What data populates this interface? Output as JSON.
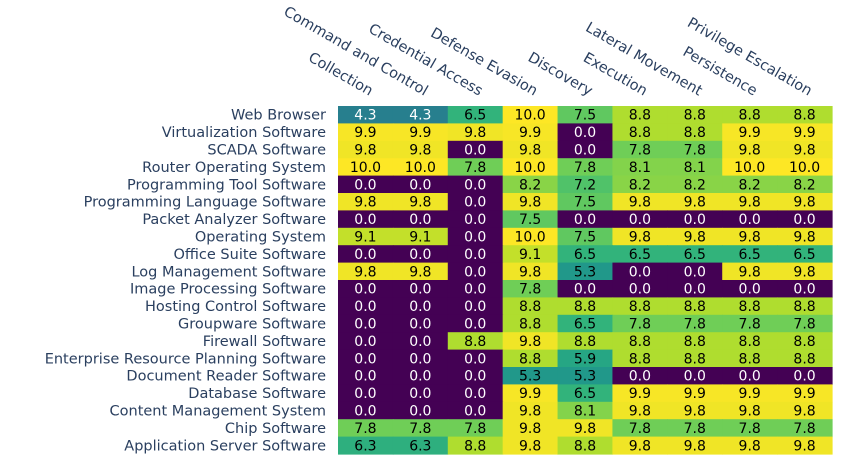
{
  "chart_data": {
    "type": "heatmap",
    "columns": [
      "Collection",
      "Command and Control",
      "Credential Access",
      "Defense Evasion",
      "Discovery",
      "Execution",
      "Lateral Movement",
      "Persistence",
      "Privilege Escalation"
    ],
    "rows": [
      "Web Browser",
      "Virtualization Software",
      "SCADA Software",
      "Router Operating System",
      "Programming Tool Software",
      "Programming Language Software",
      "Packet Analyzer Software",
      "Operating System",
      "Office Suite Software",
      "Log Management Software",
      "Image Processing Software",
      "Hosting Control Software",
      "Groupware Software",
      "Firewall Software",
      "Enterprise Resource Planning Software",
      "Document Reader Software",
      "Database Software",
      "Content Management System",
      "Chip Software",
      "Application Server Software"
    ],
    "values": [
      [
        "4.3",
        "4.3",
        "6.5",
        "10.0",
        "7.5",
        "8.8",
        "8.8",
        "8.8",
        "8.8"
      ],
      [
        "9.9",
        "9.9",
        "9.8",
        "9.9",
        "0.0",
        "8.8",
        "8.8",
        "9.9",
        "9.9"
      ],
      [
        "9.8",
        "9.8",
        "0.0",
        "9.8",
        "0.0",
        "7.8",
        "7.8",
        "9.8",
        "9.8"
      ],
      [
        "10.0",
        "10.0",
        "7.8",
        "10.0",
        "7.8",
        "8.1",
        "8.1",
        "10.0",
        "10.0"
      ],
      [
        "0.0",
        "0.0",
        "0.0",
        "8.2",
        "7.2",
        "8.2",
        "8.2",
        "8.2",
        "8.2"
      ],
      [
        "9.8",
        "9.8",
        "0.0",
        "9.8",
        "7.5",
        "9.8",
        "9.8",
        "9.8",
        "9.8"
      ],
      [
        "0.0",
        "0.0",
        "0.0",
        "7.5",
        "0.0",
        "0.0",
        "0.0",
        "0.0",
        "0.0"
      ],
      [
        "9.1",
        "9.1",
        "0.0",
        "10.0",
        "7.5",
        "9.8",
        "9.8",
        "9.8",
        "9.8"
      ],
      [
        "0.0",
        "0.0",
        "0.0",
        "9.1",
        "6.5",
        "6.5",
        "6.5",
        "6.5",
        "6.5"
      ],
      [
        "9.8",
        "9.8",
        "0.0",
        "9.8",
        "5.3",
        "0.0",
        "0.0",
        "9.8",
        "9.8"
      ],
      [
        "0.0",
        "0.0",
        "0.0",
        "7.8",
        "0.0",
        "0.0",
        "0.0",
        "0.0",
        "0.0"
      ],
      [
        "0.0",
        "0.0",
        "0.0",
        "8.8",
        "8.8",
        "8.8",
        "8.8",
        "8.8",
        "8.8"
      ],
      [
        "0.0",
        "0.0",
        "0.0",
        "8.8",
        "6.5",
        "7.8",
        "7.8",
        "7.8",
        "7.8"
      ],
      [
        "0.0",
        "0.0",
        "8.8",
        "9.8",
        "8.8",
        "8.8",
        "8.8",
        "8.8",
        "8.8"
      ],
      [
        "0.0",
        "0.0",
        "0.0",
        "8.8",
        "5.9",
        "8.8",
        "8.8",
        "8.8",
        "8.8"
      ],
      [
        "0.0",
        "0.0",
        "0.0",
        "5.3",
        "5.3",
        "0.0",
        "0.0",
        "0.0",
        "0.0"
      ],
      [
        "0.0",
        "0.0",
        "0.0",
        "9.9",
        "6.5",
        "9.9",
        "9.9",
        "9.9",
        "9.9"
      ],
      [
        "0.0",
        "0.0",
        "0.0",
        "9.8",
        "8.1",
        "9.8",
        "9.8",
        "9.8",
        "9.8"
      ],
      [
        "7.8",
        "7.8",
        "7.8",
        "9.8",
        "9.8",
        "7.8",
        "7.8",
        "7.8",
        "7.8"
      ],
      [
        "6.3",
        "6.3",
        "8.8",
        "9.8",
        "8.8",
        "9.8",
        "9.8",
        "9.8",
        "9.8"
      ]
    ],
    "zmin": 0,
    "zmax": 10,
    "colorscale": "viridis",
    "x_axis_position": "top",
    "x_tick_angle": 30,
    "colorbar": false,
    "grid": false
  }
}
